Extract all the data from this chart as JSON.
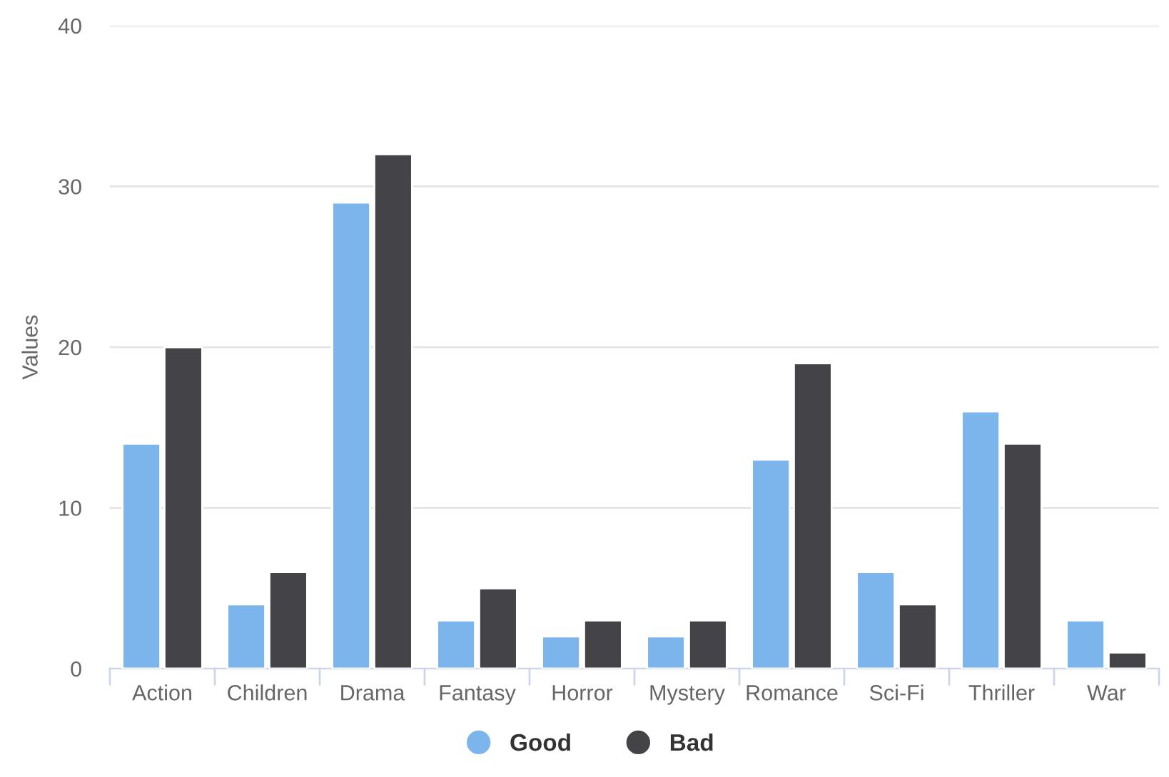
{
  "chart_data": {
    "type": "bar",
    "ylabel": "Values",
    "categories": [
      "Action",
      "Children",
      "Drama",
      "Fantasy",
      "Horror",
      "Mystery",
      "Romance",
      "Sci-Fi",
      "Thriller",
      "War"
    ],
    "series": [
      {
        "name": "Good",
        "color": "#7cb5ec",
        "values": [
          14,
          4,
          29,
          3,
          2,
          2,
          13,
          6,
          16,
          3
        ]
      },
      {
        "name": "Bad",
        "color": "#434348",
        "values": [
          20,
          6,
          32,
          5,
          3,
          3,
          19,
          4,
          14,
          1
        ]
      }
    ],
    "ylim": [
      0,
      40
    ],
    "yticks": [
      0,
      10,
      20,
      30,
      40
    ],
    "grid": "y",
    "legend": "bottom"
  }
}
